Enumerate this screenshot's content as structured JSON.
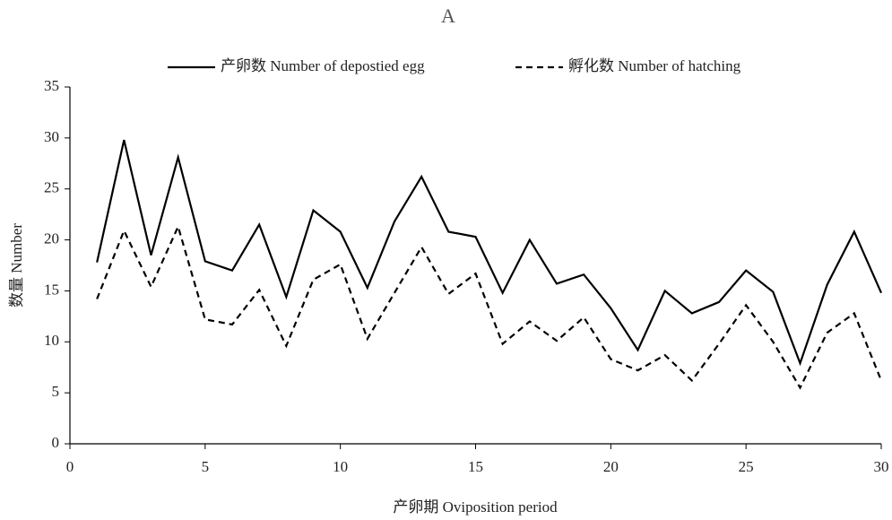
{
  "chart_data": {
    "type": "line",
    "title": "A",
    "x_label": "产卵期 Oviposition period",
    "y_label": "数量 Number",
    "x": [
      1,
      2,
      3,
      4,
      5,
      6,
      7,
      8,
      9,
      10,
      11,
      12,
      13,
      14,
      15,
      16,
      17,
      18,
      19,
      20,
      21,
      22,
      23,
      24,
      25,
      26,
      27,
      28,
      29,
      30
    ],
    "series": [
      {
        "name": "产卵数 Number of depostied egg",
        "color": "#000000",
        "line_style": "solid",
        "values": [
          17.8,
          29.8,
          18.5,
          28.1,
          17.9,
          17.0,
          21.5,
          14.4,
          22.9,
          20.8,
          15.3,
          21.8,
          26.2,
          20.8,
          20.3,
          14.8,
          20.0,
          15.7,
          16.6,
          13.3,
          9.2,
          15.0,
          12.8,
          13.9,
          17.0,
          14.9,
          7.9,
          15.6,
          20.8,
          14.8
        ]
      },
      {
        "name": "孵化数 Number of hatching",
        "color": "#000000",
        "line_style": "dashed",
        "values": [
          14.2,
          20.9,
          15.4,
          21.3,
          12.2,
          11.7,
          15.1,
          9.6,
          16.1,
          17.6,
          10.3,
          14.8,
          19.3,
          14.7,
          16.7,
          9.8,
          12.0,
          10.1,
          12.4,
          8.3,
          7.2,
          8.7,
          6.2,
          9.8,
          13.6,
          10.0,
          5.5,
          10.9,
          12.8,
          6.2
        ]
      }
    ],
    "xlim": [
      0,
      30
    ],
    "xticks": [
      0,
      5,
      10,
      15,
      20,
      25,
      30
    ],
    "ylim": [
      0,
      35
    ],
    "yticks": [
      0,
      5,
      10,
      15,
      20,
      25,
      30,
      35
    ],
    "grid": false,
    "legend": "top"
  }
}
